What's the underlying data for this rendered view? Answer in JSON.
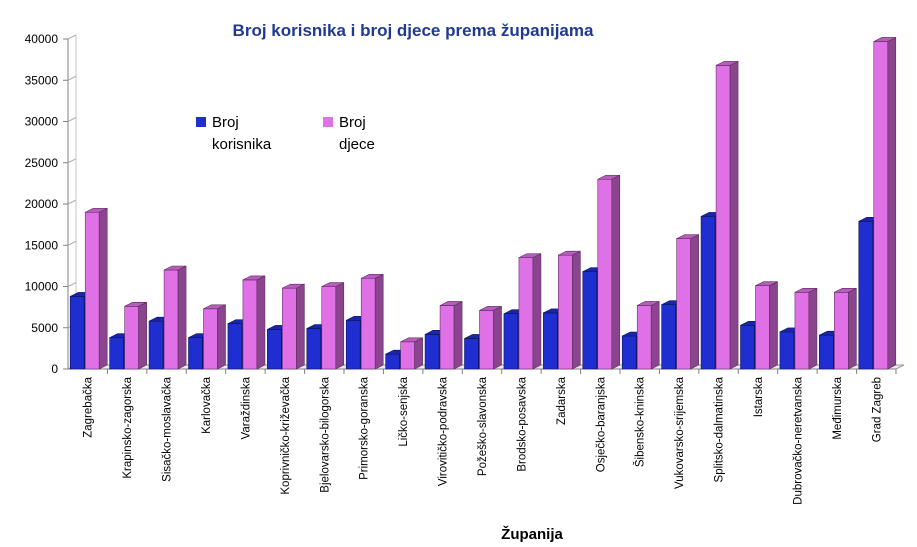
{
  "chart_data": {
    "type": "bar",
    "title": "Broj korisnika i broj djece prema županijama",
    "xlabel": "Županija",
    "ylabel": "",
    "ylim": [
      0,
      40000
    ],
    "yticks": [
      0,
      5000,
      10000,
      15000,
      20000,
      25000,
      30000,
      35000,
      40000
    ],
    "grid": false,
    "legend_position": "upper-left",
    "categories": [
      "Zagrebačka",
      "Krapinsko-zagorska",
      "Sisačko-moslavačka",
      "Karlovačka",
      "Varaždinska",
      "Koprivničko-križevačka",
      "Bjelovarsko-bilogorska",
      "Primorsko-goranska",
      "Ličko-senjska",
      "Virovitičko-podravska",
      "Požeško-slavonska",
      "Brodsko-posavska",
      "Zadarska",
      "Osječko-baranjska",
      "Šibensko-kninska",
      "Vukovarsko-srijemska",
      "Splitsko-dalmatinska",
      "Istarska",
      "Dubrovačko-neretvanska",
      "Međimurska",
      "Grad Zagreb"
    ],
    "series": [
      {
        "name": "Broj korisnika",
        "name_lines": [
          "Broj",
          "korisnika"
        ],
        "color": "#1f2ed0",
        "values": [
          8800,
          3800,
          5800,
          3800,
          5500,
          4800,
          4900,
          5900,
          1800,
          4200,
          3700,
          6700,
          6800,
          11800,
          4000,
          7800,
          18500,
          5300,
          4500,
          4100,
          17900
        ]
      },
      {
        "name": "Broj djece",
        "name_lines": [
          "Broj",
          "djece"
        ],
        "color": "#e070e6",
        "values": [
          19000,
          7600,
          12000,
          7300,
          10800,
          9800,
          10000,
          11000,
          3300,
          7700,
          7100,
          13500,
          13800,
          23000,
          7700,
          15800,
          36800,
          10100,
          9300,
          9300,
          39700
        ]
      }
    ]
  }
}
